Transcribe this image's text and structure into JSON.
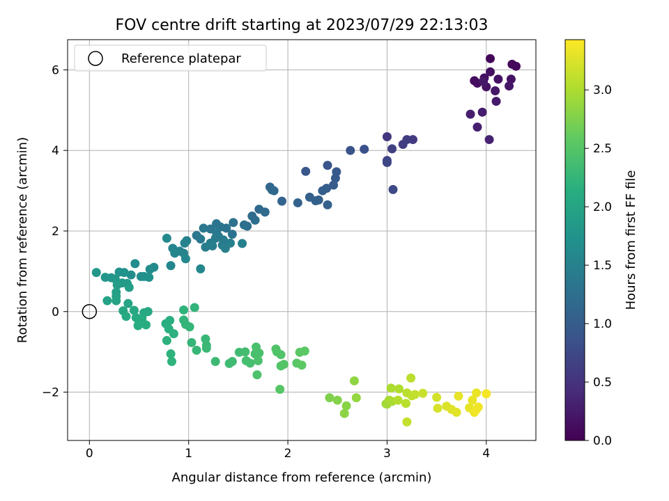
{
  "chart_data": {
    "type": "scatter",
    "title": "FOV centre drift starting at 2023/07/29 22:13:03",
    "xlabel": "Angular distance from reference (arcmin)",
    "ylabel": "Rotation from reference (arcmin)",
    "xlim": [
      -0.22,
      4.5
    ],
    "ylim": [
      -3.2,
      6.75
    ],
    "xticks": [
      0,
      1,
      2,
      3,
      4
    ],
    "yticks": [
      -2,
      0,
      2,
      4,
      6
    ],
    "grid": true,
    "legend": {
      "position": "upper-left",
      "entries": [
        {
          "label": "Reference platepar",
          "marker": "open-circle"
        }
      ]
    },
    "reference_point": {
      "x": 0,
      "y": 0
    },
    "colorbar": {
      "label": "Hours from first FF file",
      "colormap": "viridis",
      "range": [
        0.0,
        3.43
      ],
      "ticks": [
        0.0,
        0.5,
        1.0,
        1.5,
        2.0,
        2.5,
        3.0
      ]
    },
    "points": [
      [
        4.04,
        6.28,
        0.05
      ],
      [
        4.26,
        6.14,
        0.06
      ],
      [
        4.3,
        6.09,
        0.07
      ],
      [
        3.88,
        5.73,
        0.1
      ],
      [
        3.91,
        5.67,
        0.12
      ],
      [
        3.98,
        5.8,
        0.14
      ],
      [
        4.04,
        5.95,
        0.15
      ],
      [
        4.12,
        5.77,
        0.16
      ],
      [
        4.25,
        5.77,
        0.17
      ],
      [
        4.0,
        5.58,
        0.18
      ],
      [
        4.23,
        5.6,
        0.2
      ],
      [
        4.09,
        5.48,
        0.21
      ],
      [
        3.97,
        5.71,
        0.22
      ],
      [
        4.1,
        5.22,
        0.24
      ],
      [
        3.96,
        4.95,
        0.26
      ],
      [
        3.84,
        4.9,
        0.28
      ],
      [
        3.91,
        4.58,
        0.3
      ],
      [
        4.03,
        4.27,
        0.32
      ],
      [
        3.0,
        4.34,
        0.55
      ],
      [
        3.26,
        4.27,
        0.58
      ],
      [
        3.2,
        4.27,
        0.6
      ],
      [
        3.16,
        4.15,
        0.62
      ],
      [
        3.05,
        4.04,
        0.65
      ],
      [
        3.0,
        3.75,
        0.7
      ],
      [
        3.0,
        3.7,
        0.72
      ],
      [
        3.06,
        3.03,
        0.75
      ],
      [
        2.77,
        4.03,
        0.85
      ],
      [
        2.63,
        4.0,
        0.88
      ],
      [
        2.4,
        3.63,
        0.9
      ],
      [
        2.18,
        3.48,
        0.92
      ],
      [
        2.49,
        3.47,
        0.95
      ],
      [
        2.48,
        3.31,
        0.97
      ],
      [
        2.46,
        3.14,
        0.98
      ],
      [
        2.39,
        3.06,
        1.0
      ],
      [
        2.35,
        3.0,
        1.02
      ],
      [
        2.22,
        2.84,
        1.04
      ],
      [
        2.31,
        2.77,
        1.05
      ],
      [
        2.28,
        2.75,
        1.06
      ],
      [
        2.1,
        2.7,
        1.08
      ],
      [
        2.4,
        2.65,
        1.07
      ],
      [
        1.94,
        2.74,
        1.1
      ],
      [
        1.82,
        3.09,
        1.12
      ],
      [
        1.86,
        3.0,
        1.14
      ],
      [
        1.84,
        3.02,
        1.15
      ],
      [
        1.71,
        2.54,
        1.17
      ],
      [
        1.77,
        2.47,
        1.18
      ],
      [
        1.64,
        2.37,
        1.2
      ],
      [
        1.67,
        2.27,
        1.22
      ],
      [
        1.56,
        2.15,
        1.24
      ],
      [
        1.59,
        2.12,
        1.25
      ],
      [
        1.45,
        2.21,
        1.27
      ],
      [
        1.44,
        1.92,
        1.28
      ],
      [
        1.38,
        2.07,
        1.3
      ],
      [
        1.32,
        2.1,
        1.31
      ],
      [
        1.28,
        2.18,
        1.32
      ],
      [
        1.22,
        2.05,
        1.33
      ],
      [
        1.15,
        2.07,
        1.35
      ],
      [
        1.08,
        1.89,
        1.36
      ],
      [
        1.12,
        1.8,
        1.37
      ],
      [
        1.28,
        1.96,
        1.38
      ],
      [
        1.3,
        1.87,
        1.39
      ],
      [
        1.27,
        1.82,
        1.4
      ],
      [
        1.35,
        1.78,
        1.41
      ],
      [
        1.34,
        1.65,
        1.42
      ],
      [
        1.22,
        1.7,
        1.43
      ],
      [
        1.17,
        1.6,
        1.44
      ],
      [
        1.24,
        1.63,
        1.45
      ],
      [
        1.37,
        1.57,
        1.46
      ],
      [
        1.42,
        1.7,
        1.47
      ],
      [
        1.54,
        1.69,
        1.48
      ],
      [
        0.98,
        1.76,
        1.5
      ],
      [
        0.96,
        1.7,
        1.51
      ],
      [
        0.91,
        1.5,
        1.52
      ],
      [
        0.95,
        1.45,
        1.53
      ],
      [
        0.84,
        1.57,
        1.54
      ],
      [
        0.86,
        1.45,
        1.55
      ],
      [
        0.97,
        1.31,
        1.56
      ],
      [
        1.12,
        1.06,
        1.57
      ],
      [
        0.82,
        1.14,
        1.58
      ],
      [
        0.78,
        1.82,
        1.6
      ],
      [
        0.65,
        1.1,
        1.62
      ],
      [
        0.61,
        1.05,
        1.64
      ],
      [
        0.46,
        1.19,
        1.65
      ],
      [
        0.42,
        0.91,
        1.67
      ],
      [
        0.52,
        0.87,
        1.68
      ],
      [
        0.55,
        0.87,
        1.7
      ],
      [
        0.6,
        0.85,
        1.72
      ],
      [
        0.35,
        0.97,
        1.74
      ],
      [
        0.3,
        0.98,
        1.75
      ],
      [
        0.22,
        0.84,
        1.77
      ],
      [
        0.16,
        0.85,
        1.79
      ],
      [
        0.07,
        0.97,
        1.8
      ],
      [
        0.26,
        0.81,
        1.82
      ],
      [
        0.33,
        0.71,
        1.84
      ],
      [
        0.38,
        0.7,
        1.86
      ],
      [
        0.28,
        0.66,
        1.88
      ],
      [
        0.4,
        0.6,
        1.9
      ],
      [
        0.27,
        0.48,
        1.92
      ],
      [
        0.27,
        0.38,
        1.94
      ],
      [
        0.18,
        0.27,
        1.96
      ],
      [
        0.27,
        0.27,
        1.98
      ],
      [
        0.39,
        0.2,
        2.0
      ],
      [
        0.34,
        0.02,
        2.02
      ],
      [
        0.45,
        0.03,
        2.04
      ],
      [
        0.55,
        -0.03,
        2.05
      ],
      [
        0.59,
        0.0,
        2.06
      ],
      [
        0.37,
        -0.12,
        2.08
      ],
      [
        0.47,
        -0.15,
        2.09
      ],
      [
        0.53,
        -0.17,
        2.1
      ],
      [
        0.5,
        -0.28,
        2.11
      ],
      [
        0.49,
        -0.35,
        2.12
      ],
      [
        0.57,
        -0.33,
        2.13
      ],
      [
        0.77,
        -0.3,
        2.14
      ],
      [
        0.81,
        -0.22,
        2.15
      ],
      [
        0.8,
        -0.43,
        2.16
      ],
      [
        0.85,
        -0.55,
        2.17
      ],
      [
        0.78,
        -0.72,
        2.18
      ],
      [
        0.82,
        -1.05,
        2.19
      ],
      [
        0.83,
        -1.24,
        2.2
      ],
      [
        0.95,
        0.04,
        2.21
      ],
      [
        1.06,
        0.1,
        2.22
      ],
      [
        0.95,
        -0.21,
        2.23
      ],
      [
        0.97,
        -0.32,
        2.24
      ],
      [
        1.01,
        -0.38,
        2.25
      ],
      [
        1.03,
        -0.77,
        2.26
      ],
      [
        1.08,
        -0.96,
        2.27
      ],
      [
        1.17,
        -0.68,
        2.28
      ],
      [
        1.18,
        -0.84,
        2.29
      ],
      [
        1.18,
        -0.91,
        2.3
      ],
      [
        1.27,
        -1.24,
        2.31
      ],
      [
        1.41,
        -1.29,
        2.33
      ],
      [
        1.44,
        -1.24,
        2.34
      ],
      [
        1.51,
        -1.01,
        2.35
      ],
      [
        1.57,
        -1.0,
        2.37
      ],
      [
        1.58,
        -1.22,
        2.38
      ],
      [
        1.62,
        -1.28,
        2.39
      ],
      [
        1.67,
        -1.05,
        2.4
      ],
      [
        1.68,
        -0.88,
        2.41
      ],
      [
        1.71,
        -1.03,
        2.42
      ],
      [
        1.7,
        -1.22,
        2.43
      ],
      [
        1.69,
        -1.57,
        2.44
      ],
      [
        1.88,
        -0.93,
        2.46
      ],
      [
        1.89,
        -1.0,
        2.47
      ],
      [
        1.93,
        -1.07,
        2.48
      ],
      [
        1.93,
        -1.35,
        2.49
      ],
      [
        1.96,
        -1.31,
        2.5
      ],
      [
        1.92,
        -1.93,
        2.51
      ],
      [
        2.09,
        -1.28,
        2.53
      ],
      [
        2.12,
        -1.01,
        2.54
      ],
      [
        2.17,
        -0.98,
        2.55
      ],
      [
        2.14,
        -1.33,
        2.56
      ],
      [
        2.42,
        -2.14,
        2.75
      ],
      [
        2.5,
        -2.2,
        2.78
      ],
      [
        2.59,
        -2.34,
        2.8
      ],
      [
        2.57,
        -2.53,
        2.82
      ],
      [
        2.67,
        -1.72,
        2.84
      ],
      [
        2.69,
        -2.14,
        2.86
      ],
      [
        2.99,
        -2.29,
        2.92
      ],
      [
        3.0,
        -2.3,
        2.94
      ],
      [
        3.02,
        -2.2,
        2.96
      ],
      [
        3.05,
        -2.23,
        2.98
      ],
      [
        3.04,
        -1.9,
        3.0
      ],
      [
        3.12,
        -1.92,
        3.02
      ],
      [
        3.11,
        -2.2,
        3.04
      ],
      [
        3.19,
        -2.28,
        3.06
      ],
      [
        3.2,
        -2.02,
        3.07
      ],
      [
        3.24,
        -1.65,
        3.08
      ],
      [
        3.25,
        -2.09,
        3.1
      ],
      [
        3.28,
        -2.06,
        3.12
      ],
      [
        3.2,
        -2.74,
        3.13
      ],
      [
        3.36,
        -2.03,
        3.15
      ],
      [
        3.5,
        -2.13,
        3.2
      ],
      [
        3.51,
        -2.4,
        3.22
      ],
      [
        3.6,
        -2.35,
        3.24
      ],
      [
        3.65,
        -2.43,
        3.26
      ],
      [
        3.7,
        -2.5,
        3.28
      ],
      [
        3.72,
        -2.1,
        3.3
      ],
      [
        3.83,
        -2.39,
        3.31
      ],
      [
        3.86,
        -2.2,
        3.32
      ],
      [
        3.9,
        -2.02,
        3.33
      ],
      [
        3.9,
        -2.43,
        3.34
      ],
      [
        3.92,
        -2.37,
        3.35
      ],
      [
        3.88,
        -2.5,
        3.36
      ],
      [
        4.0,
        -2.04,
        3.38
      ]
    ]
  }
}
